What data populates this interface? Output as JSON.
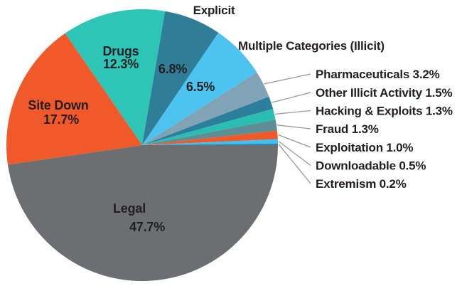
{
  "figure": {
    "background_color": "#ffffff",
    "text_color": "#231f20",
    "leader_line_color": "#9a9a9a"
  },
  "chart_data": {
    "type": "pie",
    "title": "",
    "unit": "%",
    "total": 100.0,
    "direction": "clockwise",
    "start_angle_deg_from_east": 0,
    "legend_position": "none",
    "slices": [
      {
        "label": "Legal",
        "value": 47.7,
        "pct_text": "47.7%",
        "color": "#6d6e71",
        "label_placement": "inside-two-line"
      },
      {
        "label": "Site Down",
        "value": 17.7,
        "pct_text": "17.7%",
        "color": "#f05a2b",
        "label_placement": "inside-two-line"
      },
      {
        "label": "Drugs",
        "value": 12.3,
        "pct_text": "12.3%",
        "color": "#2ec4b6",
        "label_placement": "inside-two-line"
      },
      {
        "label": "Explicit",
        "value": 6.8,
        "pct_text": "6.8%",
        "color": "#2f7d97",
        "label_placement": "name-outside-pct-inside"
      },
      {
        "label": "Multiple Categories (Illicit)",
        "value": 6.5,
        "pct_text": "6.5%",
        "color": "#4cc3f0",
        "label_placement": "name-outside-pct-inside"
      },
      {
        "label": "Pharmaceuticals",
        "value": 3.2,
        "pct_text": "3.2%",
        "color": "#80a3b5",
        "label_placement": "leader-line-right"
      },
      {
        "label": "Other Illicit Activity",
        "value": 1.5,
        "pct_text": "1.5%",
        "color": "#2c7f9b",
        "label_placement": "leader-line-right"
      },
      {
        "label": "Hacking & Exploits",
        "value": 1.3,
        "pct_text": "1.3%",
        "color": "#2abdb1",
        "label_placement": "leader-line-right"
      },
      {
        "label": "Fraud",
        "value": 1.3,
        "pct_text": "1.3%",
        "color": "#5d8d95",
        "label_placement": "leader-line-right"
      },
      {
        "label": "Exploitation",
        "value": 1.0,
        "pct_text": "1.0%",
        "color": "#f05a2b",
        "label_placement": "leader-line-right"
      },
      {
        "label": "Downloadable",
        "value": 0.5,
        "pct_text": "0.5%",
        "color": "#3dc0f2",
        "label_placement": "leader-line-right"
      },
      {
        "label": "Extremism",
        "value": 0.2,
        "pct_text": "0.2%",
        "color": "#2b87b5",
        "label_placement": "leader-line-right"
      }
    ]
  }
}
